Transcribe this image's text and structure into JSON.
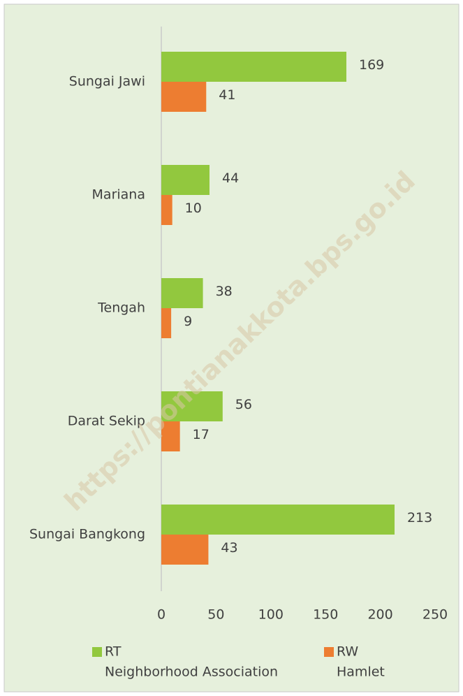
{
  "chart_data": {
    "type": "bar",
    "orientation": "horizontal",
    "categories": [
      "Sungai Jawi",
      "Mariana",
      "Tengah",
      "Darat Sekip",
      "Sungai Bangkong"
    ],
    "series": [
      {
        "name": "RT",
        "description": "Neighborhood Association",
        "color": "#92c83e",
        "values": [
          169,
          44,
          38,
          56,
          213
        ]
      },
      {
        "name": "RW",
        "description": "Hamlet",
        "color": "#ed7d31",
        "values": [
          41,
          10,
          9,
          17,
          43
        ]
      }
    ],
    "xlim": [
      0,
      250
    ],
    "xticks": [
      0,
      50,
      100,
      150,
      200,
      250
    ],
    "grid": false,
    "legend": "bottom",
    "watermark": "https://pontianakkota.bps.go.id"
  }
}
